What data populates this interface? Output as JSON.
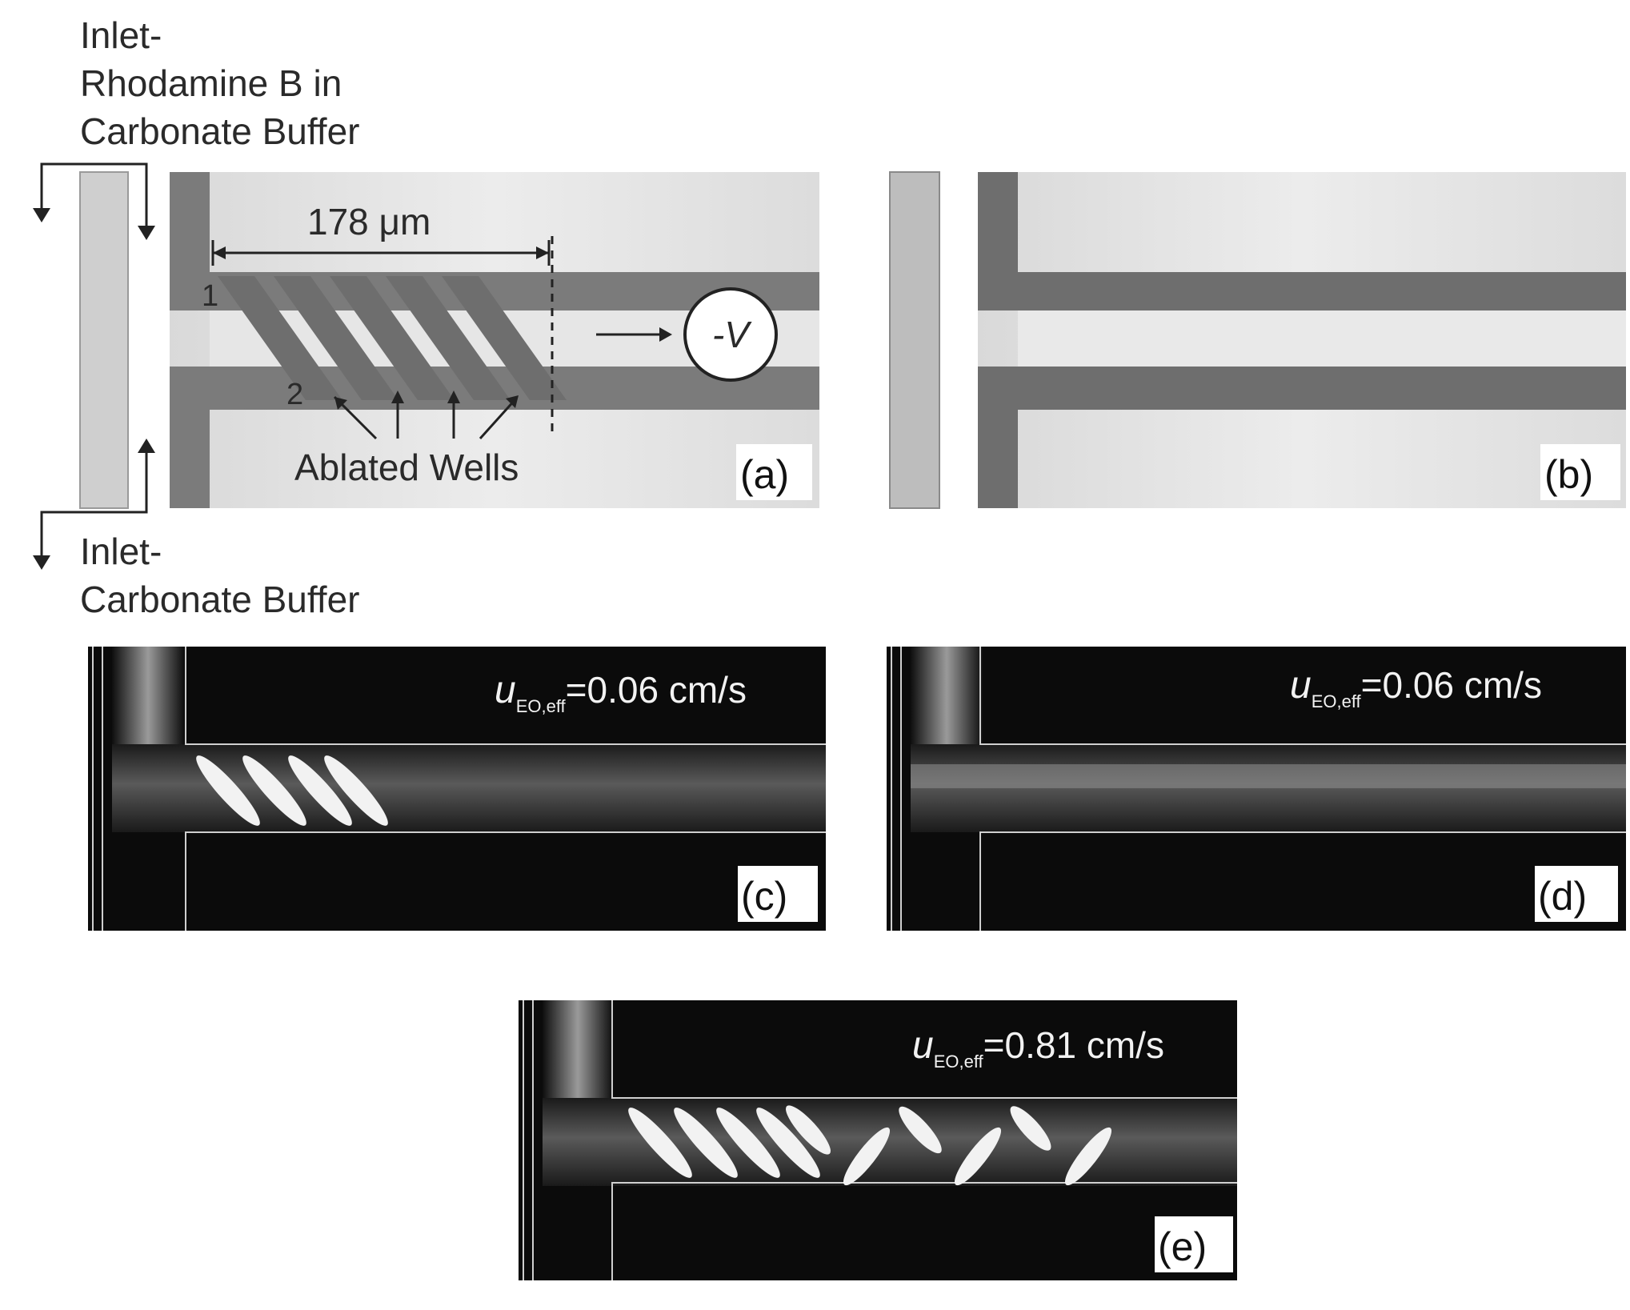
{
  "labels": {
    "inlet_top_line1": "Inlet-",
    "inlet_top_line2": "Rhodamine B in",
    "inlet_top_line3": "Carbonate Buffer",
    "inlet_bottom_line1": "Inlet-",
    "inlet_bottom_line2": "Carbonate Buffer",
    "dimension": "178 μm",
    "voltage": "-V",
    "well_1": "1",
    "well_2": "2",
    "ablated_wells": "Ablated Wells"
  },
  "panels": {
    "a": "(a)",
    "b": "(b)",
    "c": "(c)",
    "d": "(d)",
    "e": "(e)"
  },
  "velocity": {
    "symbol": "u",
    "subscript": "EO,eff",
    "c_value": "=0.06 cm/s",
    "d_value": "=0.06 cm/s",
    "e_value": "=0.81 cm/s"
  }
}
